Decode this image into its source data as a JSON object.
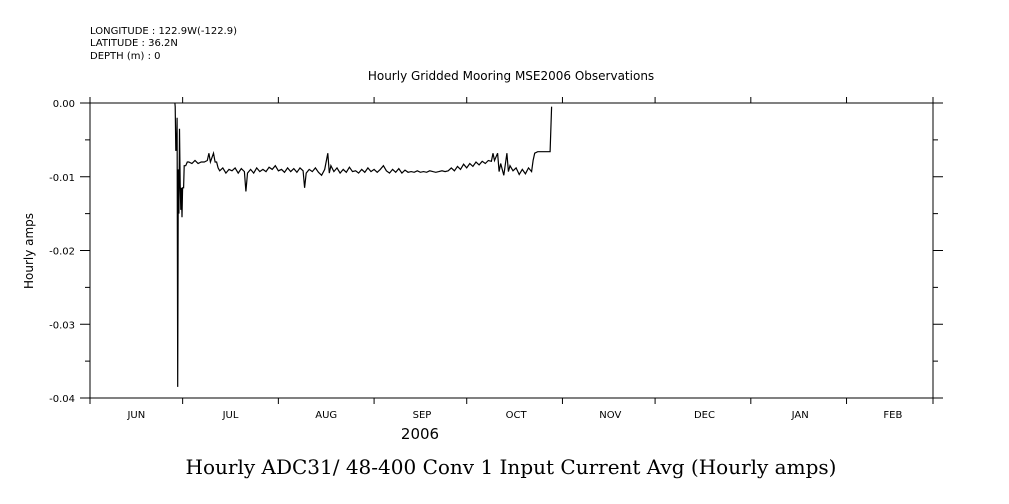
{
  "header": {
    "longitude": "LONGITUDE : 122.9W(-122.9)",
    "latitude": "LATITUDE : 36.2N",
    "depth": "DEPTH (m) : 0"
  },
  "chart_data": {
    "type": "line",
    "title": "Hourly Gridded Mooring MSE2006 Observations",
    "ylabel": "Hourly amps",
    "xlabel": "2006",
    "caption": "Hourly ADC31/ 48-400 Conv 1 Input Current  Avg (Hourly amps)",
    "x_unit": "days since 2006-06-01",
    "xlim": [
      0,
      273
    ],
    "ylim": [
      -0.04,
      0.0
    ],
    "y_ticks": [
      0.0,
      -0.01,
      -0.02,
      -0.03,
      -0.04
    ],
    "y_tick_labels": [
      "0.00",
      "-0.01",
      "-0.02",
      "-0.03",
      "-0.04"
    ],
    "months": [
      {
        "label": "JUN",
        "mid": 15
      },
      {
        "label": "JUL",
        "mid": 45.5
      },
      {
        "label": "AUG",
        "mid": 76.5
      },
      {
        "label": "SEP",
        "mid": 107.5
      },
      {
        "label": "OCT",
        "mid": 138
      },
      {
        "label": "NOV",
        "mid": 168.5
      },
      {
        "label": "DEC",
        "mid": 199
      },
      {
        "label": "JAN",
        "mid": 230
      },
      {
        "label": "FEB",
        "mid": 260
      }
    ],
    "month_boundaries": [
      0,
      30,
      61,
      92,
      122,
      153,
      183,
      214,
      245,
      273
    ],
    "series": [
      {
        "points": [
          [
            27.5,
            0.0
          ],
          [
            27.6,
            -0.0005
          ],
          [
            27.8,
            -0.0065
          ],
          [
            28.0,
            -0.006
          ],
          [
            28.2,
            -0.002
          ],
          [
            28.4,
            -0.0385
          ],
          [
            28.6,
            -0.009
          ],
          [
            28.8,
            -0.015
          ],
          [
            29.0,
            -0.0035
          ],
          [
            29.2,
            -0.011
          ],
          [
            29.4,
            -0.0145
          ],
          [
            29.6,
            -0.0115
          ],
          [
            29.8,
            -0.0155
          ],
          [
            30.0,
            -0.0115
          ],
          [
            30.3,
            -0.0115
          ],
          [
            30.5,
            -0.0085
          ],
          [
            31.0,
            -0.0085
          ],
          [
            31.5,
            -0.008
          ],
          [
            32,
            -0.008
          ],
          [
            33,
            -0.0082
          ],
          [
            34,
            -0.0078
          ],
          [
            35,
            -0.0082
          ],
          [
            36,
            -0.008
          ],
          [
            37,
            -0.008
          ],
          [
            38,
            -0.0078
          ],
          [
            38.5,
            -0.0068
          ],
          [
            39,
            -0.008
          ],
          [
            40,
            -0.0068
          ],
          [
            40.5,
            -0.008
          ],
          [
            41,
            -0.008
          ],
          [
            41.5,
            -0.0088
          ],
          [
            42,
            -0.0092
          ],
          [
            43,
            -0.0088
          ],
          [
            44,
            -0.0095
          ],
          [
            45,
            -0.009
          ],
          [
            46,
            -0.0092
          ],
          [
            47,
            -0.0088
          ],
          [
            48,
            -0.0095
          ],
          [
            49,
            -0.0089
          ],
          [
            50,
            -0.0093
          ],
          [
            50.5,
            -0.012
          ],
          [
            51,
            -0.0095
          ],
          [
            52,
            -0.009
          ],
          [
            53,
            -0.0095
          ],
          [
            54,
            -0.0088
          ],
          [
            55,
            -0.0093
          ],
          [
            56,
            -0.009
          ],
          [
            57,
            -0.0093
          ],
          [
            58,
            -0.0087
          ],
          [
            59,
            -0.009
          ],
          [
            60,
            -0.0085
          ],
          [
            61,
            -0.0092
          ],
          [
            62,
            -0.009
          ],
          [
            63,
            -0.0094
          ],
          [
            64,
            -0.0088
          ],
          [
            65,
            -0.0093
          ],
          [
            66,
            -0.0089
          ],
          [
            67,
            -0.0094
          ],
          [
            68,
            -0.0088
          ],
          [
            69,
            -0.0092
          ],
          [
            69.5,
            -0.0115
          ],
          [
            70,
            -0.0095
          ],
          [
            71,
            -0.009
          ],
          [
            72,
            -0.0093
          ],
          [
            73,
            -0.0088
          ],
          [
            74,
            -0.0094
          ],
          [
            75,
            -0.0098
          ],
          [
            76,
            -0.009
          ],
          [
            77,
            -0.0068
          ],
          [
            77.5,
            -0.0095
          ],
          [
            78,
            -0.0085
          ],
          [
            79,
            -0.0093
          ],
          [
            80,
            -0.0088
          ],
          [
            81,
            -0.0095
          ],
          [
            82,
            -0.009
          ],
          [
            83,
            -0.0094
          ],
          [
            84,
            -0.0087
          ],
          [
            85,
            -0.0093
          ],
          [
            86,
            -0.0092
          ],
          [
            87,
            -0.0095
          ],
          [
            88,
            -0.009
          ],
          [
            89,
            -0.0094
          ],
          [
            90,
            -0.0088
          ],
          [
            91,
            -0.0093
          ],
          [
            92,
            -0.009
          ],
          [
            93,
            -0.0094
          ],
          [
            94,
            -0.009
          ],
          [
            95,
            -0.0085
          ],
          [
            96,
            -0.0092
          ],
          [
            97,
            -0.0095
          ],
          [
            98,
            -0.009
          ],
          [
            99,
            -0.0094
          ],
          [
            100,
            -0.0089
          ],
          [
            101,
            -0.0095
          ],
          [
            102,
            -0.0091
          ],
          [
            103,
            -0.0094
          ],
          [
            104,
            -0.0093
          ],
          [
            105,
            -0.0094
          ],
          [
            106,
            -0.0092
          ],
          [
            107,
            -0.0094
          ],
          [
            108,
            -0.0093
          ],
          [
            109,
            -0.0094
          ],
          [
            110,
            -0.0092
          ],
          [
            111,
            -0.0093
          ],
          [
            112,
            -0.0094
          ],
          [
            113,
            -0.0093
          ],
          [
            114,
            -0.0092
          ],
          [
            115,
            -0.0093
          ],
          [
            116,
            -0.0092
          ],
          [
            117,
            -0.0088
          ],
          [
            118,
            -0.0092
          ],
          [
            119,
            -0.0086
          ],
          [
            120,
            -0.009
          ],
          [
            121,
            -0.0083
          ],
          [
            122,
            -0.0088
          ],
          [
            123,
            -0.0082
          ],
          [
            124,
            -0.0086
          ],
          [
            125,
            -0.008
          ],
          [
            126,
            -0.0084
          ],
          [
            127,
            -0.0079
          ],
          [
            128,
            -0.0082
          ],
          [
            129,
            -0.0078
          ],
          [
            130,
            -0.0079
          ],
          [
            130.5,
            -0.0068
          ],
          [
            131,
            -0.0078
          ],
          [
            132,
            -0.0068
          ],
          [
            132.5,
            -0.0093
          ],
          [
            133,
            -0.0082
          ],
          [
            134,
            -0.0098
          ],
          [
            135,
            -0.0068
          ],
          [
            135.5,
            -0.0093
          ],
          [
            136,
            -0.0085
          ],
          [
            137,
            -0.0092
          ],
          [
            138,
            -0.0088
          ],
          [
            139,
            -0.0097
          ],
          [
            140,
            -0.009
          ],
          [
            141,
            -0.0096
          ],
          [
            142,
            -0.0088
          ],
          [
            143,
            -0.0093
          ],
          [
            143.5,
            -0.0078
          ],
          [
            144,
            -0.0068
          ],
          [
            145,
            -0.0066
          ],
          [
            147,
            -0.0066
          ],
          [
            148,
            -0.0066
          ],
          [
            149,
            -0.0066
          ],
          [
            149.5,
            -0.0005
          ]
        ]
      }
    ]
  }
}
